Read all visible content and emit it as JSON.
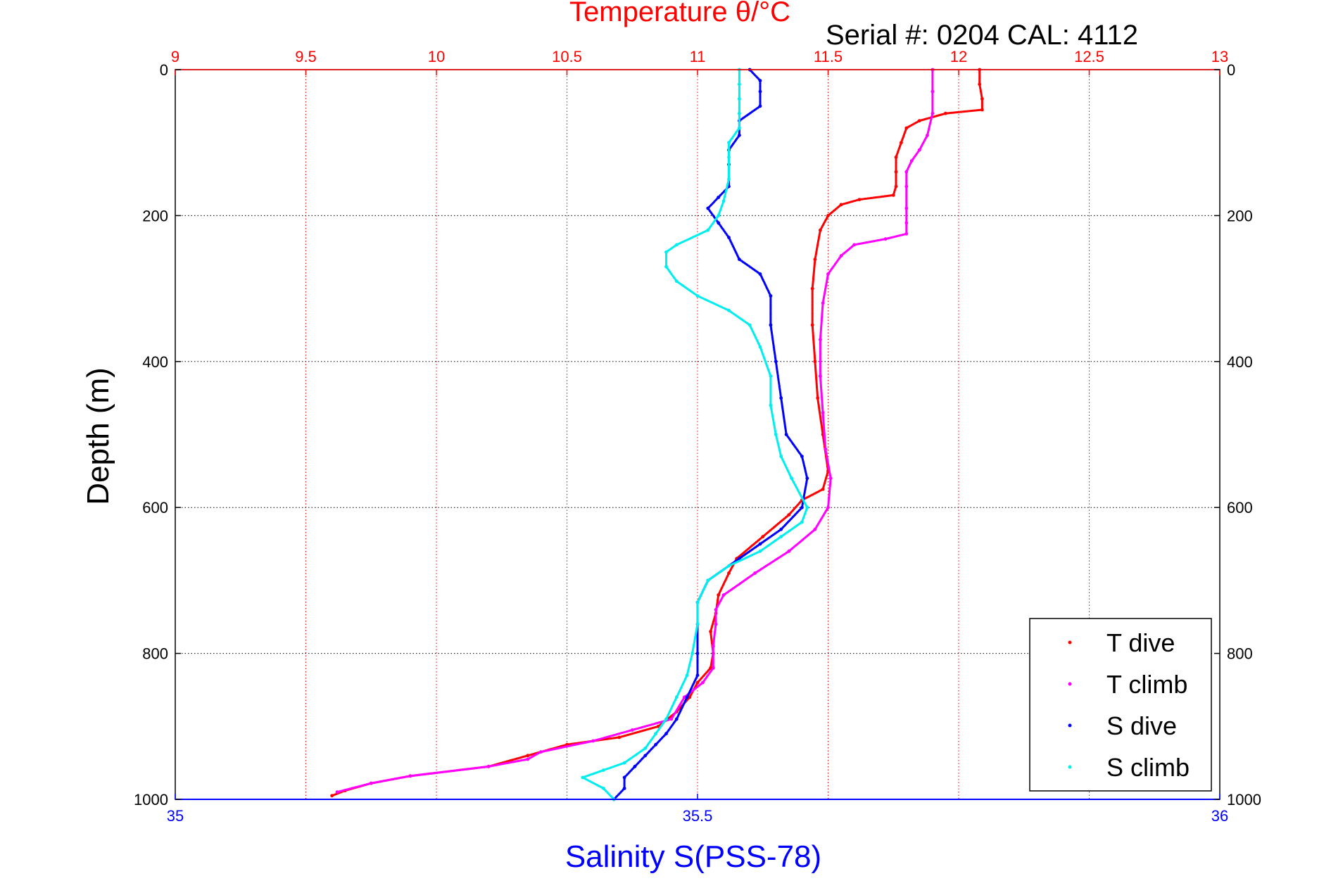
{
  "chart_data": {
    "type": "scatter",
    "title": "Temperature θ/°C",
    "subtitle": "Serial #: 0204  CAL: 4112",
    "xlabel": "Salinity S(PSS-78)",
    "ylabel": "Depth (m)",
    "x_top": {
      "label": "Temperature θ/°C",
      "range": [
        9,
        13
      ],
      "ticks": [
        "9",
        "9.5",
        "10",
        "10.5",
        "11",
        "11.5",
        "12",
        "12.5",
        "13"
      ],
      "color": "#ff0000"
    },
    "x_bottom": {
      "label": "Salinity S(PSS-78)",
      "range": [
        35,
        36
      ],
      "ticks": [
        "35",
        "35.5",
        "36"
      ],
      "color": "#0000ff"
    },
    "y": {
      "range": [
        0,
        1000
      ],
      "inverted": true,
      "ticks": [
        "0",
        "200",
        "400",
        "600",
        "800",
        "1000"
      ]
    },
    "grid": true,
    "legend_position": "bottom-right",
    "series": [
      {
        "name": "T dive",
        "axis": "top",
        "color": "#ff0000",
        "points": [
          [
            12.08,
            0
          ],
          [
            12.08,
            20
          ],
          [
            12.09,
            40
          ],
          [
            12.09,
            55
          ],
          [
            11.95,
            60
          ],
          [
            11.85,
            70
          ],
          [
            11.8,
            80
          ],
          [
            11.78,
            100
          ],
          [
            11.76,
            120
          ],
          [
            11.76,
            140
          ],
          [
            11.76,
            160
          ],
          [
            11.75,
            172
          ],
          [
            11.62,
            178
          ],
          [
            11.55,
            185
          ],
          [
            11.5,
            200
          ],
          [
            11.47,
            220
          ],
          [
            11.45,
            260
          ],
          [
            11.44,
            300
          ],
          [
            11.44,
            350
          ],
          [
            11.45,
            400
          ],
          [
            11.46,
            450
          ],
          [
            11.48,
            500
          ],
          [
            11.5,
            550
          ],
          [
            11.48,
            575
          ],
          [
            11.4,
            590
          ],
          [
            11.35,
            610
          ],
          [
            11.25,
            640
          ],
          [
            11.15,
            670
          ],
          [
            11.12,
            690
          ],
          [
            11.08,
            720
          ],
          [
            11.07,
            745
          ],
          [
            11.05,
            770
          ],
          [
            11.06,
            800
          ],
          [
            11.05,
            820
          ],
          [
            11.0,
            840
          ],
          [
            10.97,
            860
          ],
          [
            10.92,
            880
          ],
          [
            10.85,
            900
          ],
          [
            10.7,
            915
          ],
          [
            10.5,
            925
          ],
          [
            10.35,
            940
          ],
          [
            10.2,
            955
          ],
          [
            9.9,
            968
          ],
          [
            9.75,
            978
          ],
          [
            9.65,
            988
          ],
          [
            9.6,
            995
          ]
        ]
      },
      {
        "name": "T climb",
        "axis": "top",
        "color": "#ff00ff",
        "points": [
          [
            11.9,
            0
          ],
          [
            11.9,
            30
          ],
          [
            11.9,
            60
          ],
          [
            11.88,
            90
          ],
          [
            11.85,
            110
          ],
          [
            11.82,
            125
          ],
          [
            11.8,
            140
          ],
          [
            11.8,
            160
          ],
          [
            11.8,
            190
          ],
          [
            11.8,
            210
          ],
          [
            11.8,
            225
          ],
          [
            11.72,
            232
          ],
          [
            11.6,
            240
          ],
          [
            11.55,
            255
          ],
          [
            11.5,
            280
          ],
          [
            11.48,
            320
          ],
          [
            11.47,
            370
          ],
          [
            11.47,
            420
          ],
          [
            11.48,
            470
          ],
          [
            11.49,
            520
          ],
          [
            11.51,
            560
          ],
          [
            11.5,
            600
          ],
          [
            11.45,
            630
          ],
          [
            11.35,
            660
          ],
          [
            11.22,
            690
          ],
          [
            11.1,
            720
          ],
          [
            11.07,
            740
          ],
          [
            11.07,
            760
          ],
          [
            11.06,
            790
          ],
          [
            11.06,
            820
          ],
          [
            11.02,
            840
          ],
          [
            10.95,
            860
          ],
          [
            10.9,
            890
          ],
          [
            10.75,
            905
          ],
          [
            10.6,
            920
          ],
          [
            10.4,
            935
          ],
          [
            10.35,
            945
          ],
          [
            10.2,
            955
          ],
          [
            9.9,
            968
          ],
          [
            9.75,
            978
          ],
          [
            9.62,
            990
          ]
        ]
      },
      {
        "name": "S dive",
        "axis": "bottom",
        "color": "#0000ff",
        "points": [
          [
            35.55,
            0
          ],
          [
            35.56,
            15
          ],
          [
            35.56,
            30
          ],
          [
            35.56,
            50
          ],
          [
            35.54,
            70
          ],
          [
            35.54,
            90
          ],
          [
            35.53,
            110
          ],
          [
            35.53,
            130
          ],
          [
            35.53,
            160
          ],
          [
            35.52,
            175
          ],
          [
            35.51,
            190
          ],
          [
            35.52,
            210
          ],
          [
            35.53,
            230
          ],
          [
            35.54,
            260
          ],
          [
            35.56,
            280
          ],
          [
            35.57,
            310
          ],
          [
            35.57,
            350
          ],
          [
            35.575,
            400
          ],
          [
            35.58,
            450
          ],
          [
            35.585,
            500
          ],
          [
            35.6,
            530
          ],
          [
            35.605,
            560
          ],
          [
            35.6,
            600
          ],
          [
            35.58,
            630
          ],
          [
            35.56,
            650
          ],
          [
            35.54,
            670
          ],
          [
            35.51,
            700
          ],
          [
            35.5,
            730
          ],
          [
            35.5,
            760
          ],
          [
            35.5,
            800
          ],
          [
            35.5,
            830
          ],
          [
            35.49,
            860
          ],
          [
            35.48,
            890
          ],
          [
            35.47,
            910
          ],
          [
            35.46,
            925
          ],
          [
            35.45,
            940
          ],
          [
            35.44,
            955
          ],
          [
            35.43,
            970
          ],
          [
            35.43,
            985
          ],
          [
            35.42,
            1000
          ]
        ]
      },
      {
        "name": "S climb",
        "axis": "bottom",
        "color": "#00eeee",
        "points": [
          [
            35.54,
            0
          ],
          [
            35.54,
            20
          ],
          [
            35.54,
            40
          ],
          [
            35.54,
            60
          ],
          [
            35.54,
            80
          ],
          [
            35.53,
            100
          ],
          [
            35.53,
            120
          ],
          [
            35.53,
            150
          ],
          [
            35.525,
            180
          ],
          [
            35.52,
            200
          ],
          [
            35.51,
            220
          ],
          [
            35.48,
            240
          ],
          [
            35.47,
            250
          ],
          [
            35.47,
            270
          ],
          [
            35.48,
            290
          ],
          [
            35.5,
            310
          ],
          [
            35.53,
            330
          ],
          [
            35.55,
            350
          ],
          [
            35.56,
            380
          ],
          [
            35.57,
            420
          ],
          [
            35.57,
            460
          ],
          [
            35.575,
            500
          ],
          [
            35.58,
            530
          ],
          [
            35.59,
            560
          ],
          [
            35.605,
            600
          ],
          [
            35.6,
            620
          ],
          [
            35.58,
            640
          ],
          [
            35.56,
            660
          ],
          [
            35.53,
            680
          ],
          [
            35.51,
            700
          ],
          [
            35.5,
            730
          ],
          [
            35.5,
            760
          ],
          [
            35.495,
            800
          ],
          [
            35.49,
            830
          ],
          [
            35.48,
            860
          ],
          [
            35.47,
            890
          ],
          [
            35.46,
            910
          ],
          [
            35.45,
            930
          ],
          [
            35.43,
            950
          ],
          [
            35.41,
            960
          ],
          [
            35.39,
            970
          ],
          [
            35.41,
            985
          ],
          [
            35.42,
            1000
          ]
        ]
      }
    ]
  }
}
